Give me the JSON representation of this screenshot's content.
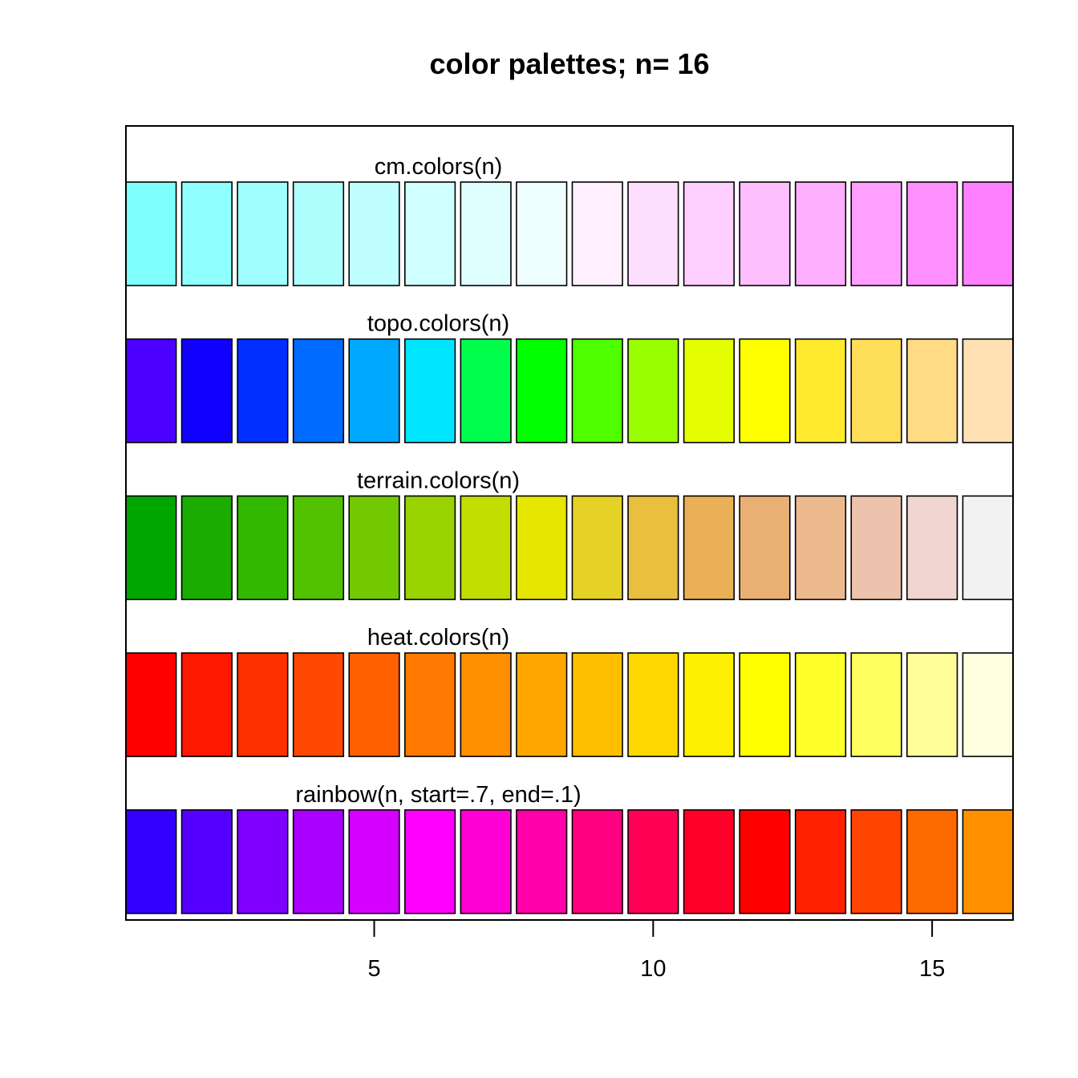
{
  "chart_data": {
    "type": "table",
    "title": "color palettes; n= 16",
    "xlabel": "",
    "ylabel": "",
    "n": 16,
    "xlim": [
      0.55,
      16.45
    ],
    "x_ticks": [
      5,
      10,
      15
    ],
    "x_tick_labels": [
      "5",
      "10",
      "15"
    ],
    "grid": false,
    "rows": [
      {
        "name": "cm.colors(n)",
        "colors": [
          "#80FFFF",
          "#8FFFFF",
          "#9FFFFF",
          "#AFFFFF",
          "#BFFFFF",
          "#CFFFFF",
          "#DFFFFF",
          "#EFFFFF",
          "#FFEFFF",
          "#FFDFFF",
          "#FFCFFF",
          "#FFBFFF",
          "#FFAFFF",
          "#FF9FFF",
          "#FF8FFF",
          "#FF80FF"
        ]
      },
      {
        "name": "topo.colors(n)",
        "colors": [
          "#4C00FF",
          "#0F00FF",
          "#002EFF",
          "#006BFF",
          "#00A8FF",
          "#00E5FF",
          "#00FF4D",
          "#00FF00",
          "#4DFF00",
          "#99FF00",
          "#E6FF00",
          "#FFFF00",
          "#FFEA2D",
          "#FFDE59",
          "#FFDB86",
          "#FFE0B3"
        ]
      },
      {
        "name": "terrain.colors(n)",
        "colors": [
          "#00A600",
          "#1AAD00",
          "#33B800",
          "#52C100",
          "#73C900",
          "#99D300",
          "#C1DE00",
          "#E6E600",
          "#E6D126",
          "#E8BF3E",
          "#E9B056",
          "#EAAF72",
          "#ECB98F",
          "#EEC3AE",
          "#F0D5D0",
          "#F2F2F2"
        ]
      },
      {
        "name": "heat.colors(n)",
        "colors": [
          "#FF0000",
          "#FF1800",
          "#FF3000",
          "#FF4800",
          "#FF6000",
          "#FF7800",
          "#FF8F00",
          "#FFA700",
          "#FFBF00",
          "#FFD700",
          "#FFEF00",
          "#FFFF00",
          "#FFFF2A",
          "#FFFF60",
          "#FFFF9A",
          "#FFFFDF"
        ]
      },
      {
        "name": "rainbow(n, start=.7, end=.1)",
        "colors": [
          "#3300FF",
          "#5500FF",
          "#8000FF",
          "#AA00FF",
          "#D500FF",
          "#FF00FF",
          "#FF00D4",
          "#FF00AA",
          "#FF0080",
          "#FF0055",
          "#FF002A",
          "#FF0000",
          "#FF2000",
          "#FF4500",
          "#FF6A00",
          "#FF9000"
        ]
      }
    ]
  }
}
